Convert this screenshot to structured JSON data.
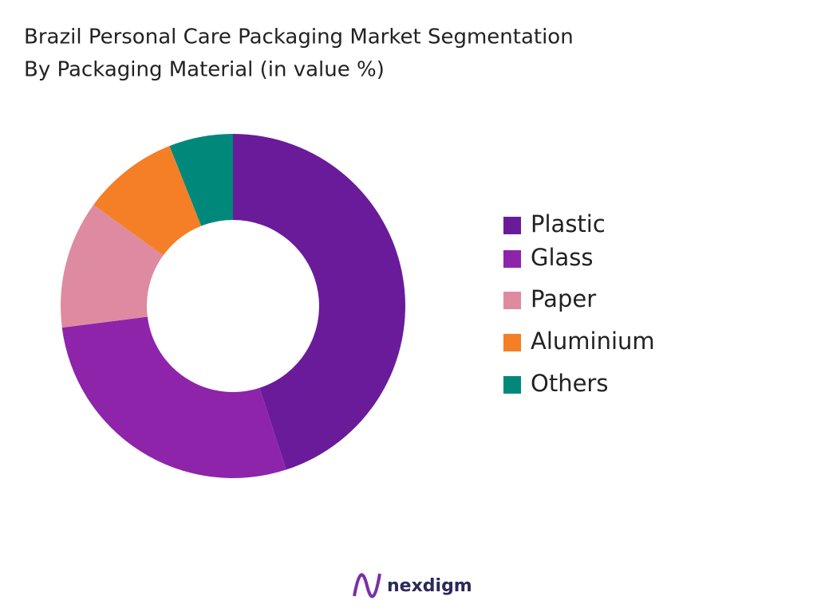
{
  "chart_data": {
    "type": "donut",
    "title": "Brazil Personal Care Packaging Market Segmentation",
    "subtitle": "By Packaging Material (in value %)",
    "categories": [
      "Plastic",
      "Glass",
      "Paper",
      "Aluminium",
      "Others"
    ],
    "values": [
      45,
      28,
      12,
      9,
      6
    ],
    "colors": [
      "#6a1b9a",
      "#8e24aa",
      "#de8aa0",
      "#f57f26",
      "#00897b"
    ],
    "legend": "right"
  },
  "footer": {
    "brand": "nexdigm"
  }
}
